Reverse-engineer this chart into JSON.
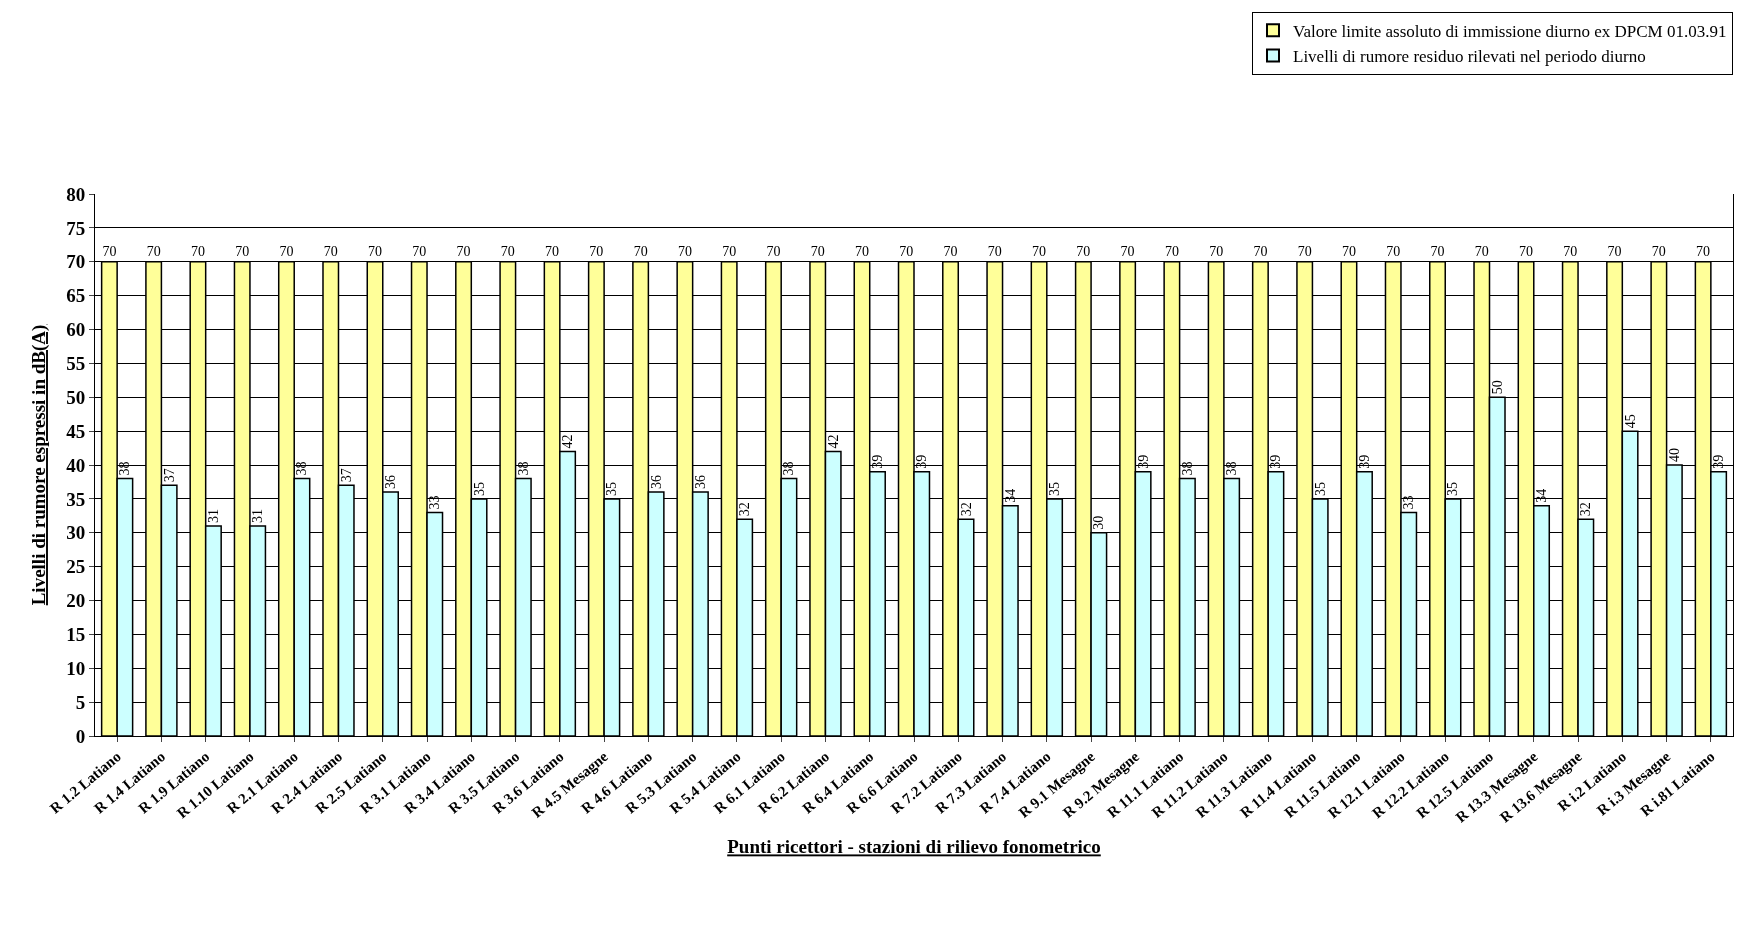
{
  "chart_data": {
    "type": "bar",
    "xlabel": "Punti ricettori - stazioni di rilievo fonometrico",
    "ylabel": "Livelli di rumore espressi in dB(A)",
    "categories": [
      "R 1.2 Latiano",
      "R 1.4 Latiano",
      "R 1.9 Latiano",
      "R 1.10 Latiano",
      "R 2.1 Latiano",
      "R 2.4 Latiano",
      "R 2.5 Latiano",
      "R 3.1 Latiano",
      "R 3.4 Latiano",
      "R 3.5 Latiano",
      "R 3.6 Latiano",
      "R 4.5 Mesagne",
      "R 4.6 Latiano",
      "R 5.3 Latiano",
      "R 5.4 Latiano",
      "R 6.1 Latiano",
      "R 6.2 Latiano",
      "R 6.4 Latiano",
      "R 6.6 Latiano",
      "R 7.2 Latiano",
      "R 7.3 Latiano",
      "R 7.4 Latiano",
      "R 9.1 Mesagne",
      "R 9.2 Mesagne",
      "R 11.1 Latiano",
      "R 11.2 Latiano",
      "R 11.3 Latiano",
      "R 11.4 Latiano",
      "R 11.5 Latiano",
      "R 12.1 Latiano",
      "R 12.2 Latiano",
      "R 12.5 Latiano",
      "R 13.3 Mesagne",
      "R 13.6 Mesagne",
      "R i.2 Latiano",
      "R i.3 Mesagne",
      "R i.81 Latiano"
    ],
    "series": [
      {
        "name": "Valore limite assoluto di immissione diurno ex DPCM 01.03.91",
        "color": "#ffff99",
        "values": [
          70,
          70,
          70,
          70,
          70,
          70,
          70,
          70,
          70,
          70,
          70,
          70,
          70,
          70,
          70,
          70,
          70,
          70,
          70,
          70,
          70,
          70,
          70,
          70,
          70,
          70,
          70,
          70,
          70,
          70,
          70,
          70,
          70,
          70,
          70,
          70,
          70
        ]
      },
      {
        "name": "Livelli di rumore residuo rilevati nel periodo diurno",
        "color": "#ccffff",
        "values": [
          38,
          37,
          31,
          31,
          38,
          37,
          36,
          33,
          35,
          38,
          42,
          35,
          36,
          36,
          32,
          38,
          42,
          39,
          39,
          32,
          34,
          35,
          30,
          39,
          38,
          38,
          39,
          35,
          39,
          33,
          35,
          50,
          34,
          32,
          45,
          40,
          39
        ]
      }
    ],
    "ylim": [
      0,
      80
    ],
    "yticks": [
      0,
      5,
      10,
      15,
      20,
      25,
      30,
      35,
      40,
      45,
      50,
      55,
      60,
      65,
      70,
      75,
      80
    ],
    "grid": "y",
    "legend": "top right",
    "data_labels": true
  }
}
